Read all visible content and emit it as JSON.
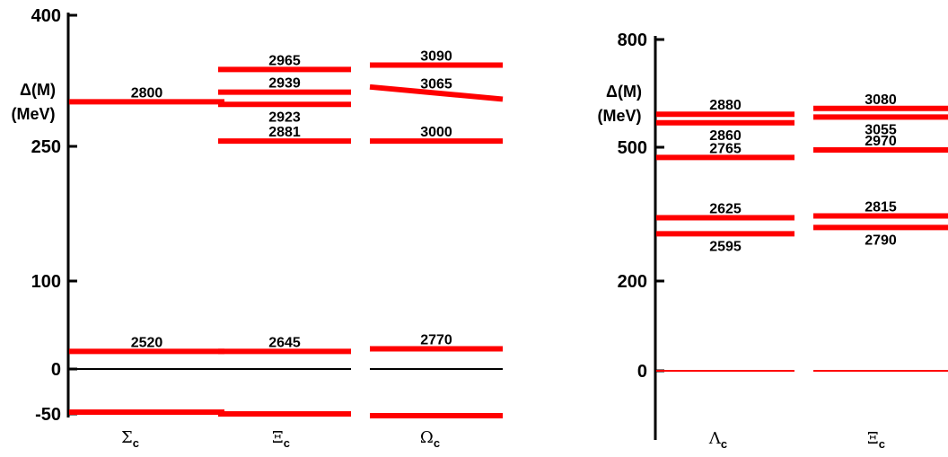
{
  "chart_data": [
    {
      "type": "level-diagram",
      "ylabel": [
        "Δ(M)",
        "(MeV)"
      ],
      "yticks": [
        -50,
        0,
        100,
        250,
        400
      ],
      "ylim": [
        -50,
        400
      ],
      "baseline_color": "#000000",
      "level_color": "#ff0000",
      "categories": [
        {
          "symbol": "Σ",
          "sub": "c"
        },
        {
          "symbol": "Ξ",
          "sub": "c"
        },
        {
          "symbol": "Ω",
          "sub": "c"
        }
      ],
      "series": [
        {
          "levels": [
            {
              "y": 301,
              "label": "2800"
            },
            {
              "y": 20,
              "label": "2520"
            },
            {
              "y": -48,
              "label": ""
            }
          ]
        },
        {
          "levels": [
            {
              "y": 338,
              "label": "2965"
            },
            {
              "y": 312,
              "label": "2939"
            },
            {
              "y": 298,
              "label": "2923"
            },
            {
              "y": 256,
              "label": "2881"
            },
            {
              "y": 20,
              "label": "2645"
            },
            {
              "y": -50,
              "label": ""
            }
          ]
        },
        {
          "levels": [
            {
              "y": 343,
              "label": "3090"
            },
            {
              "y": 318,
              "label": "3065",
              "y_end": 304
            },
            {
              "y": 256,
              "label": "3000"
            },
            {
              "y": 23,
              "label": "2770"
            },
            {
              "y": -52,
              "label": ""
            }
          ]
        }
      ]
    },
    {
      "type": "level-diagram",
      "ylabel": [
        "Δ(M)",
        "(MeV)"
      ],
      "yticks": [
        0,
        200,
        500,
        800
      ],
      "ylim": [
        -100,
        800
      ],
      "level_color": "#ff0000",
      "categories": [
        {
          "symbol": "Λ",
          "sub": "c"
        },
        {
          "symbol": "Ξ",
          "sub": "c"
        }
      ],
      "series": [
        {
          "levels": [
            {
              "y": 592,
              "label": "2880",
              "label_pos": "above"
            },
            {
              "y": 568,
              "label": "2860",
              "label_pos": "below"
            },
            {
              "y": 477,
              "label": "2765",
              "label_pos": "above"
            },
            {
              "y": 342,
              "label": "2625",
              "label_pos": "above"
            },
            {
              "y": 306,
              "label": "2595",
              "label_pos": "below"
            },
            {
              "y": 0,
              "label": "",
              "thin": true
            }
          ]
        },
        {
          "levels": [
            {
              "y": 608,
              "label": "3080",
              "label_pos": "above"
            },
            {
              "y": 584,
              "label": "3055",
              "label_pos": "below"
            },
            {
              "y": 494,
              "label": "2970",
              "label_pos": "above"
            },
            {
              "y": 346,
              "label": "2815",
              "label_pos": "above"
            },
            {
              "y": 320,
              "label": "2790",
              "label_pos": "below"
            },
            {
              "y": 0,
              "label": "",
              "thin": true
            }
          ]
        }
      ]
    }
  ]
}
